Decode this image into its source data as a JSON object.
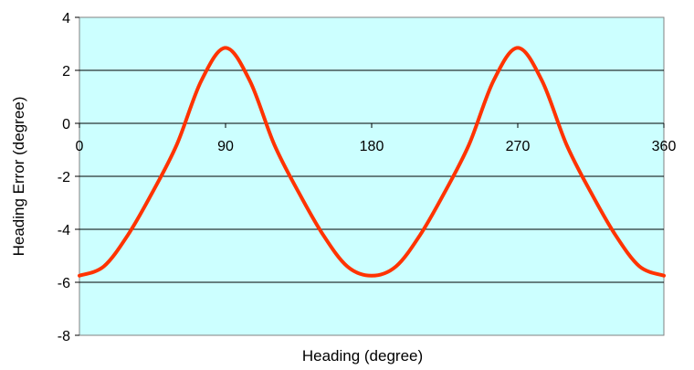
{
  "chart_data": {
    "type": "line",
    "title": "",
    "xlabel": "Heading (degree)",
    "ylabel": "Heading Error (degree)",
    "xlim": [
      0,
      360
    ],
    "ylim": [
      -8,
      4
    ],
    "x_ticks": [
      0,
      90,
      180,
      270,
      360
    ],
    "x_tick_labels": [
      "0",
      "90",
      "180",
      "270",
      "360"
    ],
    "y_ticks": [
      4,
      2,
      0,
      -2,
      -4,
      -6,
      -8
    ],
    "y_tick_labels": [
      "4",
      "2",
      "0",
      "-2",
      "-4",
      "-6",
      "-8"
    ],
    "grid": {
      "horizontal": true,
      "vertical": false
    },
    "legend": "none",
    "colors": {
      "plot_background": "#ccffff",
      "line": "#ff3300",
      "grid": "#000000"
    },
    "series": [
      {
        "x": [
          0,
          15,
          30,
          45,
          60,
          75,
          90,
          105,
          120,
          135,
          150,
          165,
          180,
          195,
          210,
          225,
          240,
          255,
          270,
          285,
          300,
          315,
          330,
          345,
          360
        ],
        "y": [
          -5.75,
          -5.4,
          -4.2,
          -2.6,
          -0.8,
          1.6,
          2.85,
          1.6,
          -0.8,
          -2.6,
          -4.2,
          -5.4,
          -5.75,
          -5.4,
          -4.2,
          -2.6,
          -0.8,
          1.6,
          2.85,
          1.6,
          -0.8,
          -2.6,
          -4.2,
          -5.4,
          -5.75
        ]
      }
    ]
  }
}
